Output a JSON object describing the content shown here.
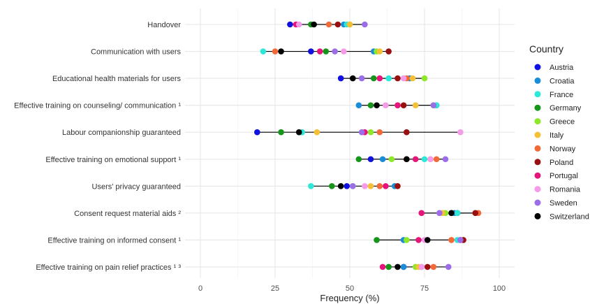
{
  "chart_data": {
    "type": "dot",
    "xlabel": "Frequency (%)",
    "xlim": [
      0,
      100
    ],
    "xticks": [
      "0",
      "25",
      "50",
      "75",
      "100"
    ],
    "grid": true,
    "legend_title": "Country",
    "legend_position": "right",
    "series": [
      {
        "name": "Austria",
        "color": "#1010e0"
      },
      {
        "name": "Croatia",
        "color": "#1a8cd8"
      },
      {
        "name": "France",
        "color": "#2de8d8"
      },
      {
        "name": "Germany",
        "color": "#17951b"
      },
      {
        "name": "Greece",
        "color": "#8ee82a"
      },
      {
        "name": "Italy",
        "color": "#f5c036"
      },
      {
        "name": "Norway",
        "color": "#f26a3a"
      },
      {
        "name": "Poland",
        "color": "#9a1010"
      },
      {
        "name": "Portugal",
        "color": "#e6157a"
      },
      {
        "name": "Romania",
        "color": "#f59ce8"
      },
      {
        "name": "Sweden",
        "color": "#9b6ee8"
      },
      {
        "name": "Switzerland",
        "color": "#000000"
      }
    ],
    "categories": [
      {
        "label": "Handover",
        "values": [
          30,
          48,
          49,
          37,
          50,
          50,
          43,
          46,
          32,
          33,
          55,
          38
        ]
      },
      {
        "label": "Communication with users",
        "values": [
          37,
          58,
          21,
          42,
          59,
          60,
          25,
          63,
          40,
          48,
          45,
          27
        ]
      },
      {
        "label": "Educational health materials for users",
        "values": [
          47,
          70,
          63,
          58,
          75,
          71,
          69,
          66,
          60,
          68,
          54,
          51
        ]
      },
      {
        "label": "Effective training on counseling/ communication ¹",
        "values": [
          79,
          53,
          79,
          57,
          78,
          72,
          66,
          68,
          66,
          62,
          78,
          59
        ]
      },
      {
        "label": "Labour companionship guaranteed",
        "values": [
          19,
          34,
          34,
          27,
          57,
          39,
          60,
          69,
          55,
          87,
          54,
          33
        ]
      },
      {
        "label": "Effective training on emotional support ¹",
        "values": [
          57,
          61,
          75,
          53,
          64,
          77,
          79,
          69,
          72,
          77,
          82,
          69
        ]
      },
      {
        "label": "Users' privacy guaranteed",
        "values": [
          49,
          65,
          37,
          44,
          51,
          57,
          60,
          66,
          62,
          55,
          51,
          47
        ]
      },
      {
        "label": "Consent request material aids ²",
        "values": [
          86,
          85,
          86,
          84,
          82,
          81,
          93,
          92,
          74,
          80,
          80,
          84
        ]
      },
      {
        "label": "Effective training on informed consent ¹",
        "values": [
          87,
          68,
          86,
          59,
          69,
          84,
          84,
          88,
          73,
          75,
          87,
          76
        ]
      },
      {
        "label": "Effective training on pain relief practices ¹ ³",
        "values": [
          68,
          68,
          74,
          63,
          72,
          73,
          78,
          76,
          61,
          74,
          83,
          66
        ]
      }
    ]
  }
}
